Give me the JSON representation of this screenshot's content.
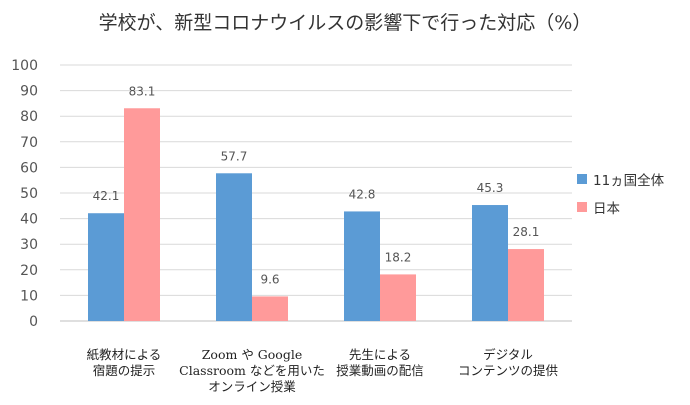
{
  "chart_data": {
    "type": "bar",
    "title": "学校が、新型コロナウイルスの影響下で行った対応（%）",
    "categories": [
      [
        "紙教材による",
        "宿題の提示"
      ],
      [
        "Zoom や Google",
        "Classroom などを用いた",
        "オンライン授業"
      ],
      [
        "先生による",
        "授業動画の配信"
      ],
      [
        "デジタル",
        "コンテンツの提供"
      ]
    ],
    "series": [
      {
        "name": "11ヵ国全体",
        "color": "#5b9bd5",
        "values": [
          42.1,
          57.7,
          42.8,
          45.3
        ],
        "labels": [
          "42.1",
          "57.7",
          "42.8",
          "45.3"
        ]
      },
      {
        "name": "日本",
        "color": "#ff9a9a",
        "values": [
          83.1,
          9.6,
          18.2,
          28.1
        ],
        "labels": [
          "83.1",
          "9.6",
          "18.2",
          "28.1"
        ]
      }
    ],
    "ylim": [
      0,
      100
    ],
    "yticks": [
      "0",
      "10",
      "20",
      "30",
      "40",
      "50",
      "60",
      "70",
      "80",
      "90",
      "100"
    ],
    "grid": true,
    "legend_position": "right"
  }
}
